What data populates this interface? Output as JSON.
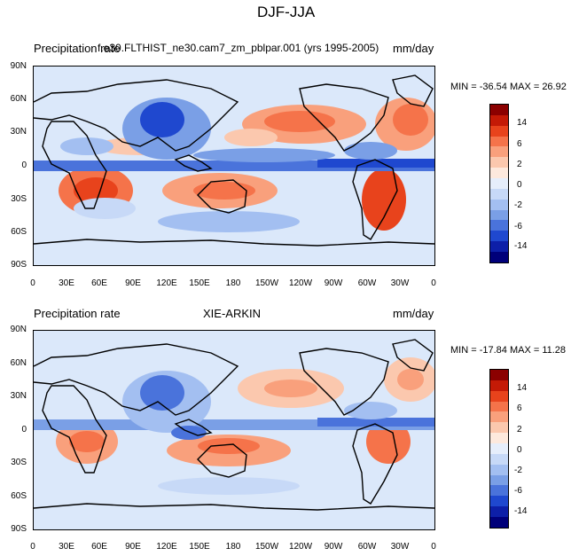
{
  "figure": {
    "title": "DJF-JJA"
  },
  "panels": [
    {
      "left_header": "Precipitation rate",
      "center_header": "f.e30.FLTHIST_ne30.cam7_zm_pblpar.001 (yrs 1995-2005)",
      "right_header": "mm/day",
      "stats": "MIN = -36.54  MAX =  26.92"
    },
    {
      "left_header": "Precipitation rate",
      "center_header": "XIE-ARKIN",
      "right_header": "mm/day",
      "stats": "MIN = -17.84  MAX =  11.28"
    }
  ],
  "lat_ticks": [
    "90N",
    "60N",
    "30N",
    "0",
    "30S",
    "60S",
    "90S"
  ],
  "lon_ticks": [
    "0",
    "30E",
    "60E",
    "90E",
    "120E",
    "150E",
    "180",
    "150W",
    "120W",
    "90W",
    "60W",
    "30W",
    "0"
  ],
  "colorbar": {
    "labels": [
      "14",
      "6",
      "2",
      "0",
      "-2",
      "-6",
      "-14"
    ],
    "colors": [
      "#8b0000",
      "#c41a06",
      "#e8431c",
      "#f5734a",
      "#f9a07c",
      "#fbc8ae",
      "#fde9dd",
      "#e6eefb",
      "#c7d9f7",
      "#a3bff1",
      "#7a9fe6",
      "#4a73db",
      "#1f48cf",
      "#0d1fa8",
      "#00007a"
    ]
  }
}
